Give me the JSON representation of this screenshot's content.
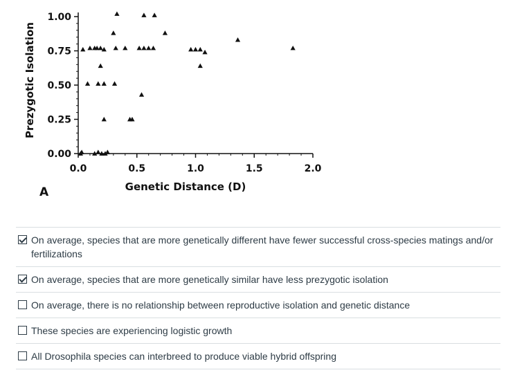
{
  "chart_data": {
    "type": "scatter",
    "panel_label": "A",
    "xlabel": "Genetic Distance (D)",
    "ylabel": "Prezygotic Isolation",
    "xlim": [
      0.0,
      2.0
    ],
    "ylim": [
      0.0,
      1.0
    ],
    "x_ticks": [
      "0.0",
      "0.5",
      "1.0",
      "1.5",
      "2.0"
    ],
    "y_ticks": [
      "0.00",
      "0.25",
      "0.50",
      "0.75",
      "1.00"
    ],
    "marker": "triangle",
    "grid": false,
    "points": [
      {
        "x": 0.02,
        "y": 0.0
      },
      {
        "x": 0.03,
        "y": 0.01
      },
      {
        "x": 0.14,
        "y": 0.0
      },
      {
        "x": 0.17,
        "y": 0.01
      },
      {
        "x": 0.2,
        "y": 0.0
      },
      {
        "x": 0.23,
        "y": 0.0
      },
      {
        "x": 0.25,
        "y": 0.01
      },
      {
        "x": 0.04,
        "y": 0.76
      },
      {
        "x": 0.1,
        "y": 0.77
      },
      {
        "x": 0.14,
        "y": 0.77
      },
      {
        "x": 0.16,
        "y": 0.77
      },
      {
        "x": 0.19,
        "y": 0.77
      },
      {
        "x": 0.22,
        "y": 0.76
      },
      {
        "x": 0.32,
        "y": 0.77
      },
      {
        "x": 0.4,
        "y": 0.77
      },
      {
        "x": 0.52,
        "y": 0.77
      },
      {
        "x": 0.56,
        "y": 0.77
      },
      {
        "x": 0.6,
        "y": 0.77
      },
      {
        "x": 0.64,
        "y": 0.77
      },
      {
        "x": 0.19,
        "y": 0.64
      },
      {
        "x": 0.08,
        "y": 0.51
      },
      {
        "x": 0.17,
        "y": 0.51
      },
      {
        "x": 0.22,
        "y": 0.51
      },
      {
        "x": 0.31,
        "y": 0.51
      },
      {
        "x": 0.54,
        "y": 0.43
      },
      {
        "x": 0.22,
        "y": 0.25
      },
      {
        "x": 0.44,
        "y": 0.25
      },
      {
        "x": 0.46,
        "y": 0.25
      },
      {
        "x": 0.33,
        "y": 1.02
      },
      {
        "x": 0.56,
        "y": 1.01
      },
      {
        "x": 0.65,
        "y": 1.01
      },
      {
        "x": 0.3,
        "y": 0.88
      },
      {
        "x": 0.74,
        "y": 0.88
      },
      {
        "x": 0.96,
        "y": 0.76
      },
      {
        "x": 1.0,
        "y": 0.76
      },
      {
        "x": 1.04,
        "y": 0.76
      },
      {
        "x": 1.08,
        "y": 0.74
      },
      {
        "x": 1.04,
        "y": 0.64
      },
      {
        "x": 1.36,
        "y": 0.83
      },
      {
        "x": 1.83,
        "y": 0.77
      }
    ]
  },
  "answers": [
    {
      "label": "On average, species that are more genetically different have fewer successful cross-species matings and/or fertilizations",
      "checked": true
    },
    {
      "label": "On average, species that are more genetically similar have less prezygotic isolation",
      "checked": true
    },
    {
      "label": "On average, there is no relationship between reproductive isolation and genetic distance",
      "checked": false
    },
    {
      "label": "These species are experiencing logistic growth",
      "checked": false
    },
    {
      "label": "All Drosophila species can interbreed to produce viable hybrid offspring",
      "checked": false
    }
  ]
}
